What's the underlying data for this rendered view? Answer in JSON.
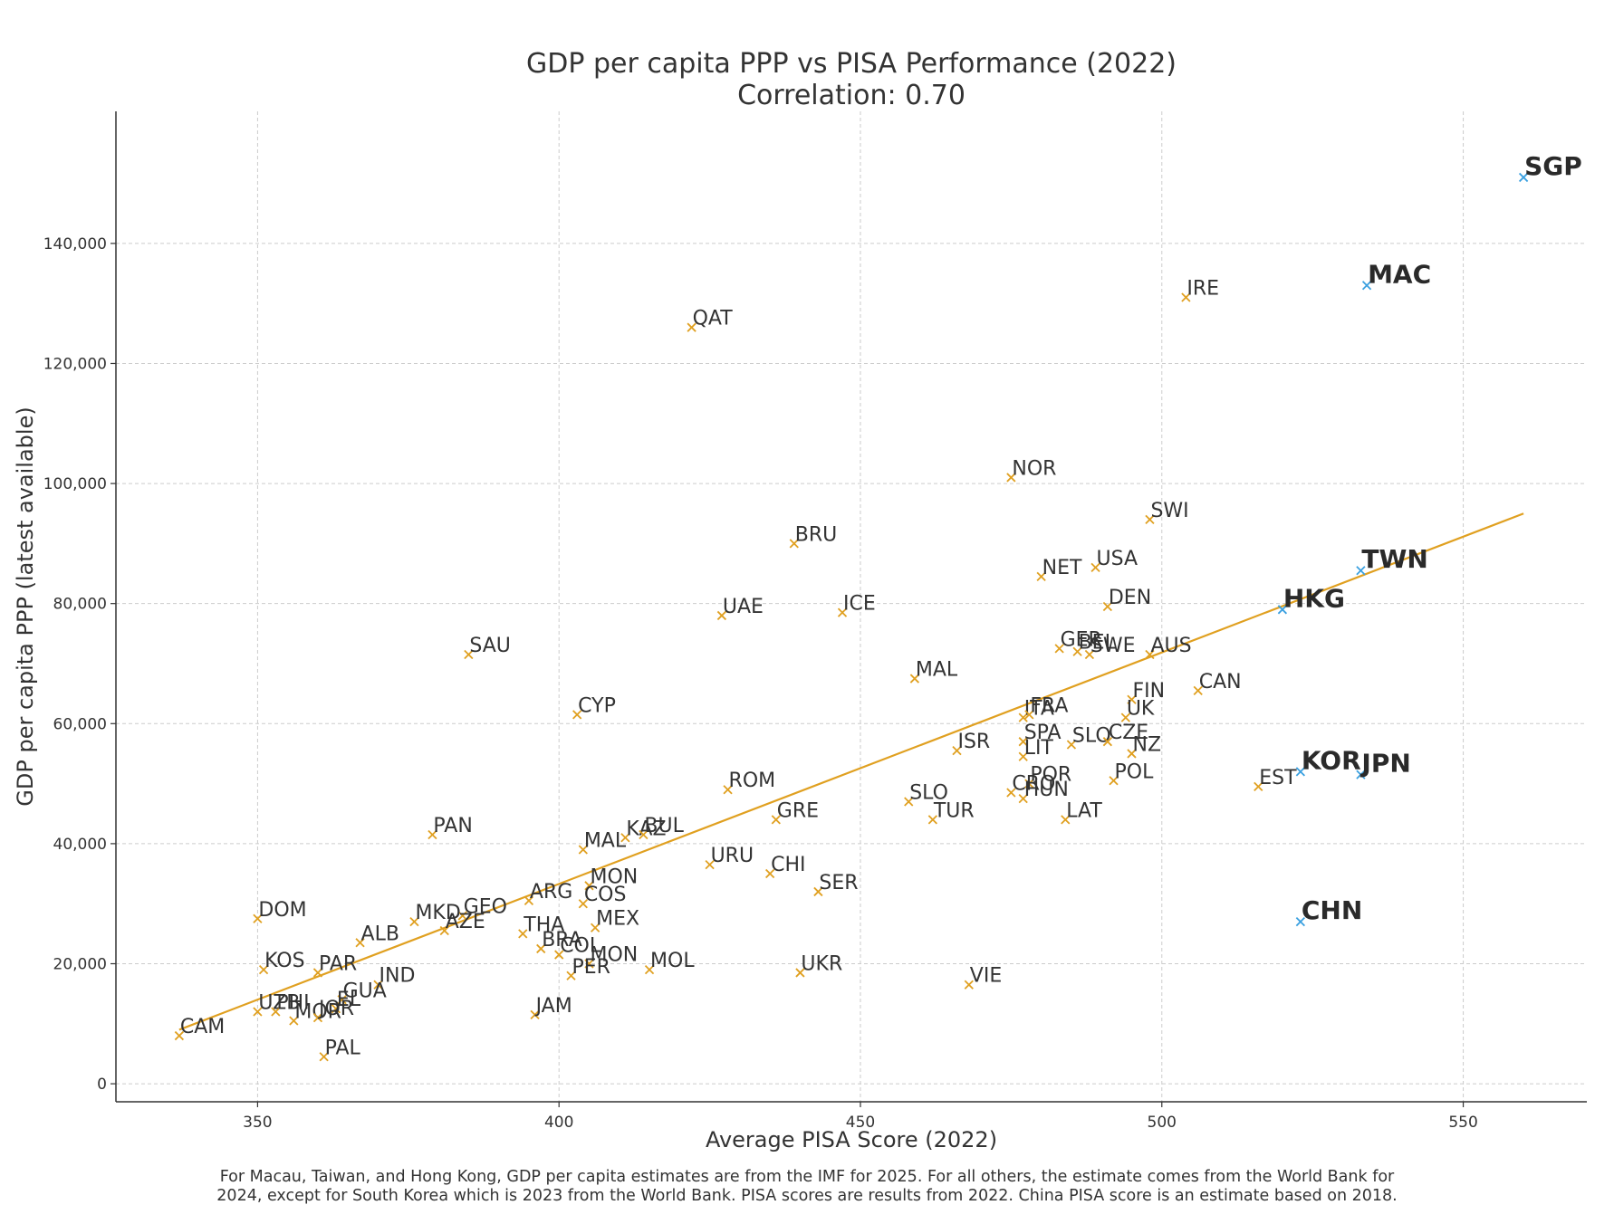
{
  "chart_data": {
    "type": "scatter",
    "title": "GDP per capita PPP vs PISA Performance (2022)",
    "subtitle": "Correlation: 0.70",
    "xlabel": "Average PISA Score (2022)",
    "ylabel": "GDP per capita PPP (latest available)",
    "xlim": [
      326.5,
      570.5
    ],
    "ylim": [
      -3000,
      162000
    ],
    "xticks": [
      350,
      400,
      450,
      500,
      550
    ],
    "yticks": [
      0,
      20000,
      40000,
      60000,
      80000,
      100000,
      120000,
      140000
    ],
    "ytick_labels": [
      "0",
      "20,000",
      "40,000",
      "60,000",
      "80,000",
      "100,000",
      "120,000",
      "140,000"
    ],
    "grid": true,
    "colors": {
      "normal": "#e0a020",
      "highlight": "#3aa0e0",
      "trend": "#e0a020"
    },
    "trendline": {
      "x": [
        337,
        560
      ],
      "y": [
        9000,
        95000
      ]
    },
    "points": [
      {
        "label": "SGP",
        "x": 560,
        "y": 151000,
        "highlight": true
      },
      {
        "label": "MAC",
        "x": 534,
        "y": 133000,
        "highlight": true
      },
      {
        "label": "TWN",
        "x": 533,
        "y": 85500,
        "highlight": true
      },
      {
        "label": "HKG",
        "x": 520,
        "y": 79000,
        "highlight": true
      },
      {
        "label": "KOR",
        "x": 523,
        "y": 52000,
        "highlight": true
      },
      {
        "label": "JPN",
        "x": 533,
        "y": 51500,
        "highlight": true
      },
      {
        "label": "CHN",
        "x": 523,
        "y": 27000,
        "highlight": true
      },
      {
        "label": "IRE",
        "x": 504,
        "y": 131000
      },
      {
        "label": "QAT",
        "x": 422,
        "y": 126000
      },
      {
        "label": "NOR",
        "x": 475,
        "y": 101000
      },
      {
        "label": "SWI",
        "x": 498,
        "y": 94000
      },
      {
        "label": "BRU",
        "x": 439,
        "y": 90000
      },
      {
        "label": "USA",
        "x": 489,
        "y": 86000
      },
      {
        "label": "NET",
        "x": 480,
        "y": 84500
      },
      {
        "label": "DEN",
        "x": 491,
        "y": 79500
      },
      {
        "label": "UAE",
        "x": 427,
        "y": 78000
      },
      {
        "label": "ICE",
        "x": 447,
        "y": 78500
      },
      {
        "label": "GER",
        "x": 483,
        "y": 72500
      },
      {
        "label": "BEL",
        "x": 486,
        "y": 72000
      },
      {
        "label": "SWE",
        "x": 488,
        "y": 71500
      },
      {
        "label": "AUS",
        "x": 498,
        "y": 71500
      },
      {
        "label": "SAU",
        "x": 385,
        "y": 71500
      },
      {
        "label": "MAL",
        "x": 459,
        "y": 67500
      },
      {
        "label": "CAN",
        "x": 506,
        "y": 65500
      },
      {
        "label": "FIN",
        "x": 495,
        "y": 64000
      },
      {
        "label": "CYP",
        "x": 403,
        "y": 61500
      },
      {
        "label": "ITA",
        "x": 477,
        "y": 61000
      },
      {
        "label": "FRA",
        "x": 478,
        "y": 61500
      },
      {
        "label": "UK",
        "x": 494,
        "y": 61000
      },
      {
        "label": "SPA",
        "x": 477,
        "y": 57000
      },
      {
        "label": "SLO",
        "x": 485,
        "y": 56500
      },
      {
        "label": "CZE",
        "x": 491,
        "y": 57000
      },
      {
        "label": "ISR",
        "x": 466,
        "y": 55500
      },
      {
        "label": "LIT",
        "x": 477,
        "y": 54500
      },
      {
        "label": "NZ",
        "x": 495,
        "y": 55000
      },
      {
        "label": "POL",
        "x": 492,
        "y": 50500
      },
      {
        "label": "EST",
        "x": 516,
        "y": 49500
      },
      {
        "label": "POR",
        "x": 478,
        "y": 50000
      },
      {
        "label": "CRO",
        "x": 475,
        "y": 48500
      },
      {
        "label": "HUN",
        "x": 477,
        "y": 47500
      },
      {
        "label": "ROM",
        "x": 428,
        "y": 49000
      },
      {
        "label": "SLO",
        "x": 458,
        "y": 47000
      },
      {
        "label": "GRE",
        "x": 436,
        "y": 44000
      },
      {
        "label": "TUR",
        "x": 462,
        "y": 44000
      },
      {
        "label": "LAT",
        "x": 484,
        "y": 44000
      },
      {
        "label": "PAN",
        "x": 379,
        "y": 41500
      },
      {
        "label": "KAZ",
        "x": 411,
        "y": 41000
      },
      {
        "label": "BUL",
        "x": 414,
        "y": 41500
      },
      {
        "label": "MAL",
        "x": 404,
        "y": 39000
      },
      {
        "label": "URU",
        "x": 425,
        "y": 36500
      },
      {
        "label": "CHI",
        "x": 435,
        "y": 35000
      },
      {
        "label": "MON",
        "x": 405,
        "y": 33000
      },
      {
        "label": "SER",
        "x": 443,
        "y": 32000
      },
      {
        "label": "ARG",
        "x": 395,
        "y": 30500
      },
      {
        "label": "COS",
        "x": 404,
        "y": 30000
      },
      {
        "label": "DOM",
        "x": 350,
        "y": 27500
      },
      {
        "label": "GEO",
        "x": 384,
        "y": 28000
      },
      {
        "label": "MKD",
        "x": 376,
        "y": 27000
      },
      {
        "label": "MEX",
        "x": 406,
        "y": 26000
      },
      {
        "label": "AZE",
        "x": 381,
        "y": 25500
      },
      {
        "label": "THA",
        "x": 394,
        "y": 25000
      },
      {
        "label": "ALB",
        "x": 367,
        "y": 23500
      },
      {
        "label": "BRA",
        "x": 397,
        "y": 22500
      },
      {
        "label": "COL",
        "x": 400,
        "y": 21500
      },
      {
        "label": "MON",
        "x": 405,
        "y": 20000
      },
      {
        "label": "PER",
        "x": 402,
        "y": 18000
      },
      {
        "label": "MOL",
        "x": 415,
        "y": 19000
      },
      {
        "label": "UKR",
        "x": 440,
        "y": 18500
      },
      {
        "label": "VIE",
        "x": 468,
        "y": 16500
      },
      {
        "label": "KOS",
        "x": 351,
        "y": 19000
      },
      {
        "label": "PAR",
        "x": 360,
        "y": 18500
      },
      {
        "label": "IND",
        "x": 370,
        "y": 16500
      },
      {
        "label": "GUA",
        "x": 364,
        "y": 14000
      },
      {
        "label": "EL",
        "x": 363,
        "y": 12500
      },
      {
        "label": "UZB",
        "x": 350,
        "y": 12000
      },
      {
        "label": "PHI",
        "x": 353,
        "y": 12000
      },
      {
        "label": "MOR",
        "x": 356,
        "y": 10500
      },
      {
        "label": "JOR",
        "x": 360,
        "y": 11000
      },
      {
        "label": "JAM",
        "x": 396,
        "y": 11500
      },
      {
        "label": "CAM",
        "x": 337,
        "y": 8000
      },
      {
        "label": "PAL",
        "x": 361,
        "y": 4500
      }
    ]
  },
  "footnote": "For Macau, Taiwan, and Hong Kong, GDP per capita estimates are from the IMF for 2025. For all others, the estimate comes from the World Bank for 2024, except for South Korea which is 2023 from the World Bank. PISA scores are results from 2022. China PISA score is an estimate based on 2018."
}
